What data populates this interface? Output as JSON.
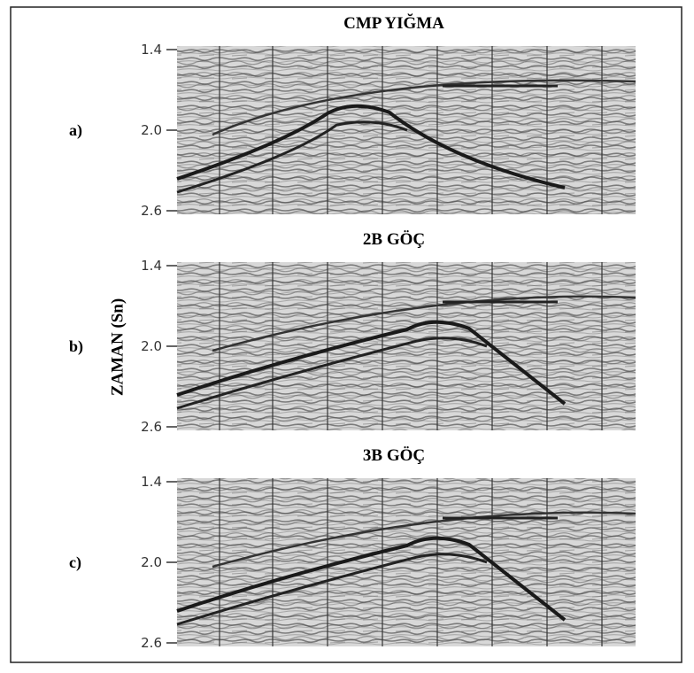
{
  "y_axis_label": "ZAMAN (Sn)",
  "panels": [
    {
      "label": "a)",
      "title": "CMP YIĞMA",
      "ticks": [
        "1.4",
        "2.0",
        "2.6"
      ]
    },
    {
      "label": "b)",
      "title": "2B GÖÇ",
      "ticks": [
        "1.4",
        "2.0",
        "2.6"
      ]
    },
    {
      "label": "c)",
      "title": "3B GÖÇ",
      "ticks": [
        "1.4",
        "2.0",
        "2.6"
      ]
    }
  ]
}
